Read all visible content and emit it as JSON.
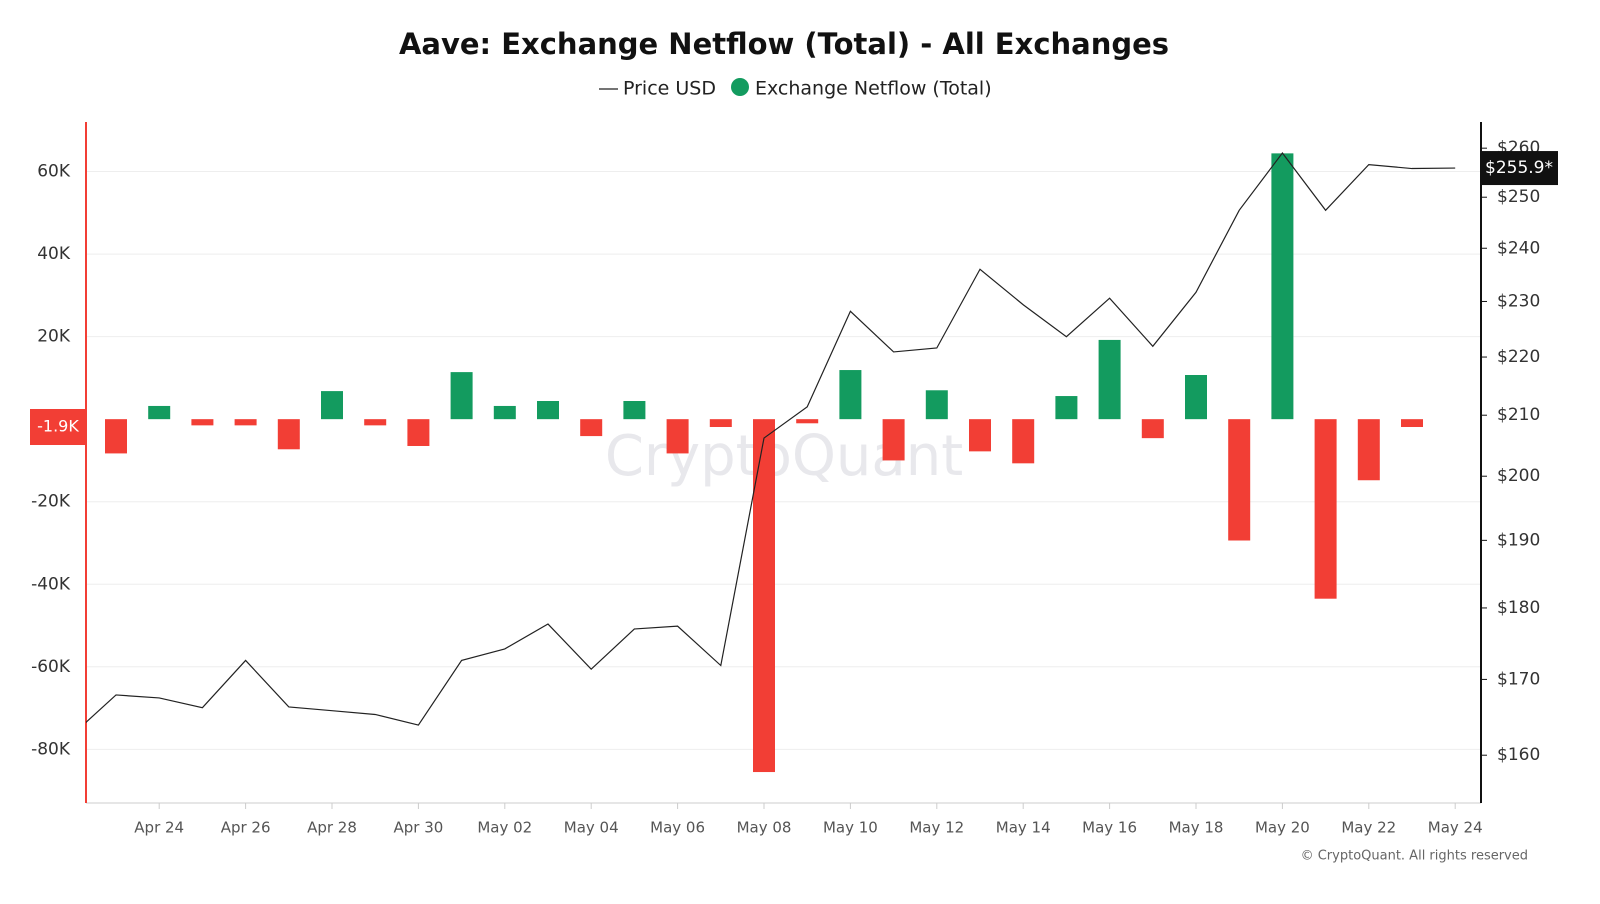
{
  "chart_data": {
    "type": "bar_line",
    "title": "Aave: Exchange Netflow (Total) - All Exchanges",
    "watermark": "CryptoQuant",
    "footer": "© CryptoQuant. All rights reserved",
    "categories": [
      null,
      null,
      "Apr 24",
      null,
      "Apr 26",
      null,
      "Apr 28",
      null,
      "Apr 30",
      null,
      "May 02",
      null,
      "May 04",
      null,
      "May 06",
      null,
      "May 08",
      null,
      "May 10",
      null,
      "May 12",
      null,
      "May 14",
      null,
      "May 16",
      null,
      "May 18",
      null,
      "May 20",
      null,
      "May 22",
      null,
      "May 24"
    ],
    "series": [
      {
        "name": "Price USD",
        "type": "line",
        "axis": "y2",
        "color": "#222222",
        "values": [
          162.7,
          167.9,
          167.5,
          166.2,
          172.6,
          166.3,
          165.8,
          165.3,
          163.9,
          172.6,
          174.2,
          177.7,
          171.4,
          177.0,
          177.4,
          171.9,
          206.2,
          211.4,
          228.2,
          220.9,
          221.6,
          236.0,
          229.4,
          223.6,
          230.6,
          221.9,
          231.7,
          247.4,
          259.0,
          247.4,
          256.6,
          255.8,
          255.9
        ]
      },
      {
        "name": "Exchange Netflow (Total)",
        "type": "bar",
        "color": "#139b5f",
        "negative_color": "#f23e35",
        "values": [
          null,
          -8300,
          3200,
          -1500,
          -1500,
          -7300,
          6800,
          -1500,
          -6500,
          11400,
          3200,
          4400,
          -4100,
          4400,
          -8300,
          -1900,
          -85500,
          -1000,
          11900,
          -10000,
          7000,
          -7800,
          -10700,
          5600,
          19200,
          -4600,
          10700,
          -29400,
          64400,
          -43500,
          -14800,
          -1900,
          null
        ]
      }
    ],
    "last_labels": {
      "netflow": "-1.9K",
      "price": "$255.9*"
    },
    "ylim": [
      -93000,
      72000
    ],
    "yticks": [
      {
        "value": -80000,
        "label": "-80K"
      },
      {
        "value": -60000,
        "label": "-60K"
      },
      {
        "value": -40000,
        "label": "-40K"
      },
      {
        "value": -20000,
        "label": "-20K"
      },
      {
        "value": 20000,
        "label": "20K"
      },
      {
        "value": 40000,
        "label": "40K"
      },
      {
        "value": 60000,
        "label": "60K"
      }
    ],
    "y2lim": [
      154,
      265.5
    ],
    "y2scale": "log",
    "y2ticks": [
      {
        "value": 160,
        "label": "$160"
      },
      {
        "value": 170,
        "label": "$170"
      },
      {
        "value": 180,
        "label": "$180"
      },
      {
        "value": 190,
        "label": "$190"
      },
      {
        "value": 200,
        "label": "$200"
      },
      {
        "value": 210,
        "label": "$210"
      },
      {
        "value": 220,
        "label": "$220"
      },
      {
        "value": 230,
        "label": "$230"
      },
      {
        "value": 240,
        "label": "$240"
      },
      {
        "value": 250,
        "label": "$250"
      },
      {
        "value": 260,
        "label": "$260"
      }
    ],
    "grid": true
  }
}
